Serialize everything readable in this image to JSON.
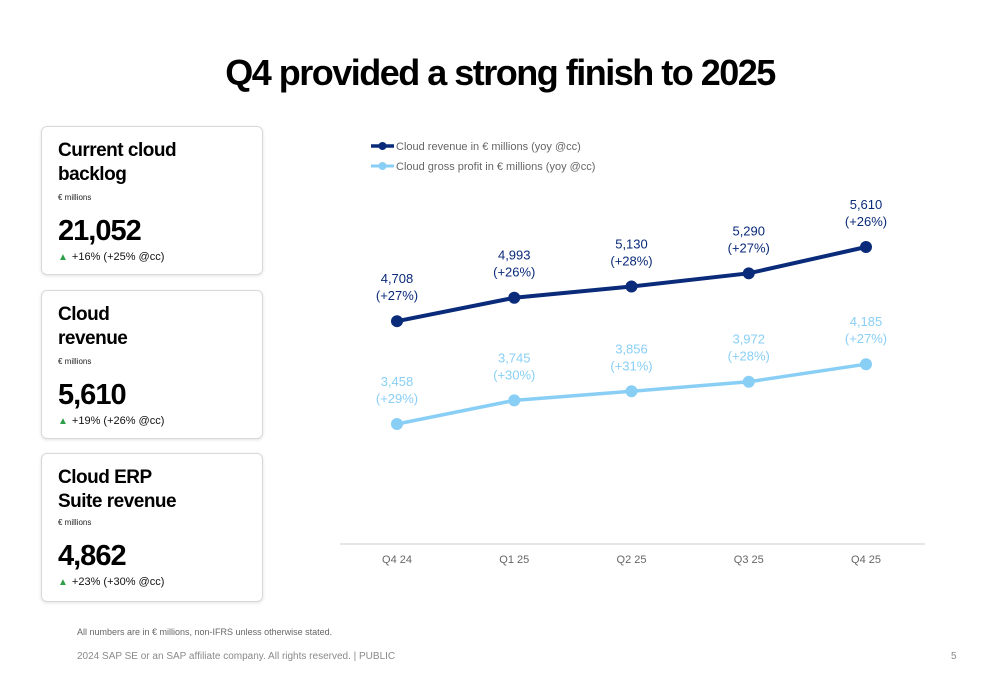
{
  "title": "Q4 provided a strong finish to 2025",
  "cards": [
    {
      "title": "Current cloud backlog",
      "unit": "€ millions",
      "value": "21,052",
      "delta": "+16% (+25% @cc)"
    },
    {
      "title": "Cloud revenue",
      "unit": "€ millions",
      "value": "5,610",
      "delta": "+19% (+26% @cc)"
    },
    {
      "title": "Cloud ERP Suite revenue",
      "unit": "€ millions",
      "value": "4,862",
      "delta": "+23% (+30% @cc)"
    }
  ],
  "footnote": "All numbers are in € millions, non-IFRS unless otherwise stated.",
  "footer": "2024 SAP SE or an SAP affiliate company. All rights reserved.  | PUBLIC",
  "page_number": "5",
  "colors": {
    "dark_series": "#0a2a7a",
    "light_series": "#89cff5",
    "up_arrow": "#2e9e4a"
  },
  "chart_data": {
    "type": "line",
    "categories": [
      "Q4 24",
      "Q1 25",
      "Q2 25",
      "Q3 25",
      "Q4 25"
    ],
    "series": [
      {
        "name": "Cloud revenue in € millions (yoy @cc)",
        "values": [
          4708,
          4993,
          5130,
          5290,
          5610
        ],
        "labels": [
          "4,708",
          "4,993",
          "5,130",
          "5,290",
          "5,610"
        ],
        "growth": [
          "(+27%)",
          "(+26%)",
          "(+28%)",
          "(+27%)",
          "(+26%)"
        ],
        "color": "#0a2a7a"
      },
      {
        "name": "Cloud gross profit in € millions (yoy @cc)",
        "values": [
          3458,
          3745,
          3856,
          3972,
          4185
        ],
        "labels": [
          "3,458",
          "3,745",
          "3,856",
          "3,972",
          "4,185"
        ],
        "growth": [
          "(+29%)",
          "(+30%)",
          "(+31%)",
          "(+28%)",
          "(+27%)"
        ],
        "color": "#89cff5"
      }
    ],
    "legend_position": "top-left",
    "grid": false,
    "y_axis_visible": false
  }
}
